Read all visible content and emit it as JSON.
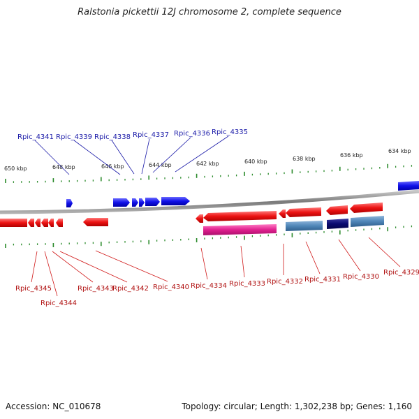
{
  "title": "Ralstonia pickettii 12J chromosome 2, complete sequence",
  "footer": {
    "accession": "Accession: NC_010678",
    "summary": "Topology: circular; Length: 1,302,238 bp; Genes: 1,160"
  },
  "colors": {
    "forward_gene": "#1010e8",
    "reverse_gene": "#e81010",
    "magenta_feature": "#e0208f",
    "steelblue_feature": "#4f86b8",
    "navy_feature": "#0a0a70",
    "tick": "#2a8a2a",
    "backbone": "#8a8a8a",
    "top_label": "#1a1aa8",
    "bottom_label": "#b01010"
  },
  "kbp_labels": [
    "650 kbp",
    "648 kbp",
    "646 kbp",
    "644 kbp",
    "642 kbp",
    "640 kbp",
    "638 kbp",
    "636 kbp",
    "634 kbp"
  ],
  "top_genes": [
    "Rpic_4341",
    "Rpic_4339",
    "Rpic_4338",
    "Rpic_4337",
    "Rpic_4336",
    "Rpic_4335"
  ],
  "bottom_genes": [
    "Rpic_4345",
    "Rpic_4344",
    "Rpic_4343",
    "Rpic_4342",
    "Rpic_4340",
    "Rpic_4334",
    "Rpic_4333",
    "Rpic_4332",
    "Rpic_4331",
    "Rpic_4330",
    "Rpic_4329"
  ]
}
